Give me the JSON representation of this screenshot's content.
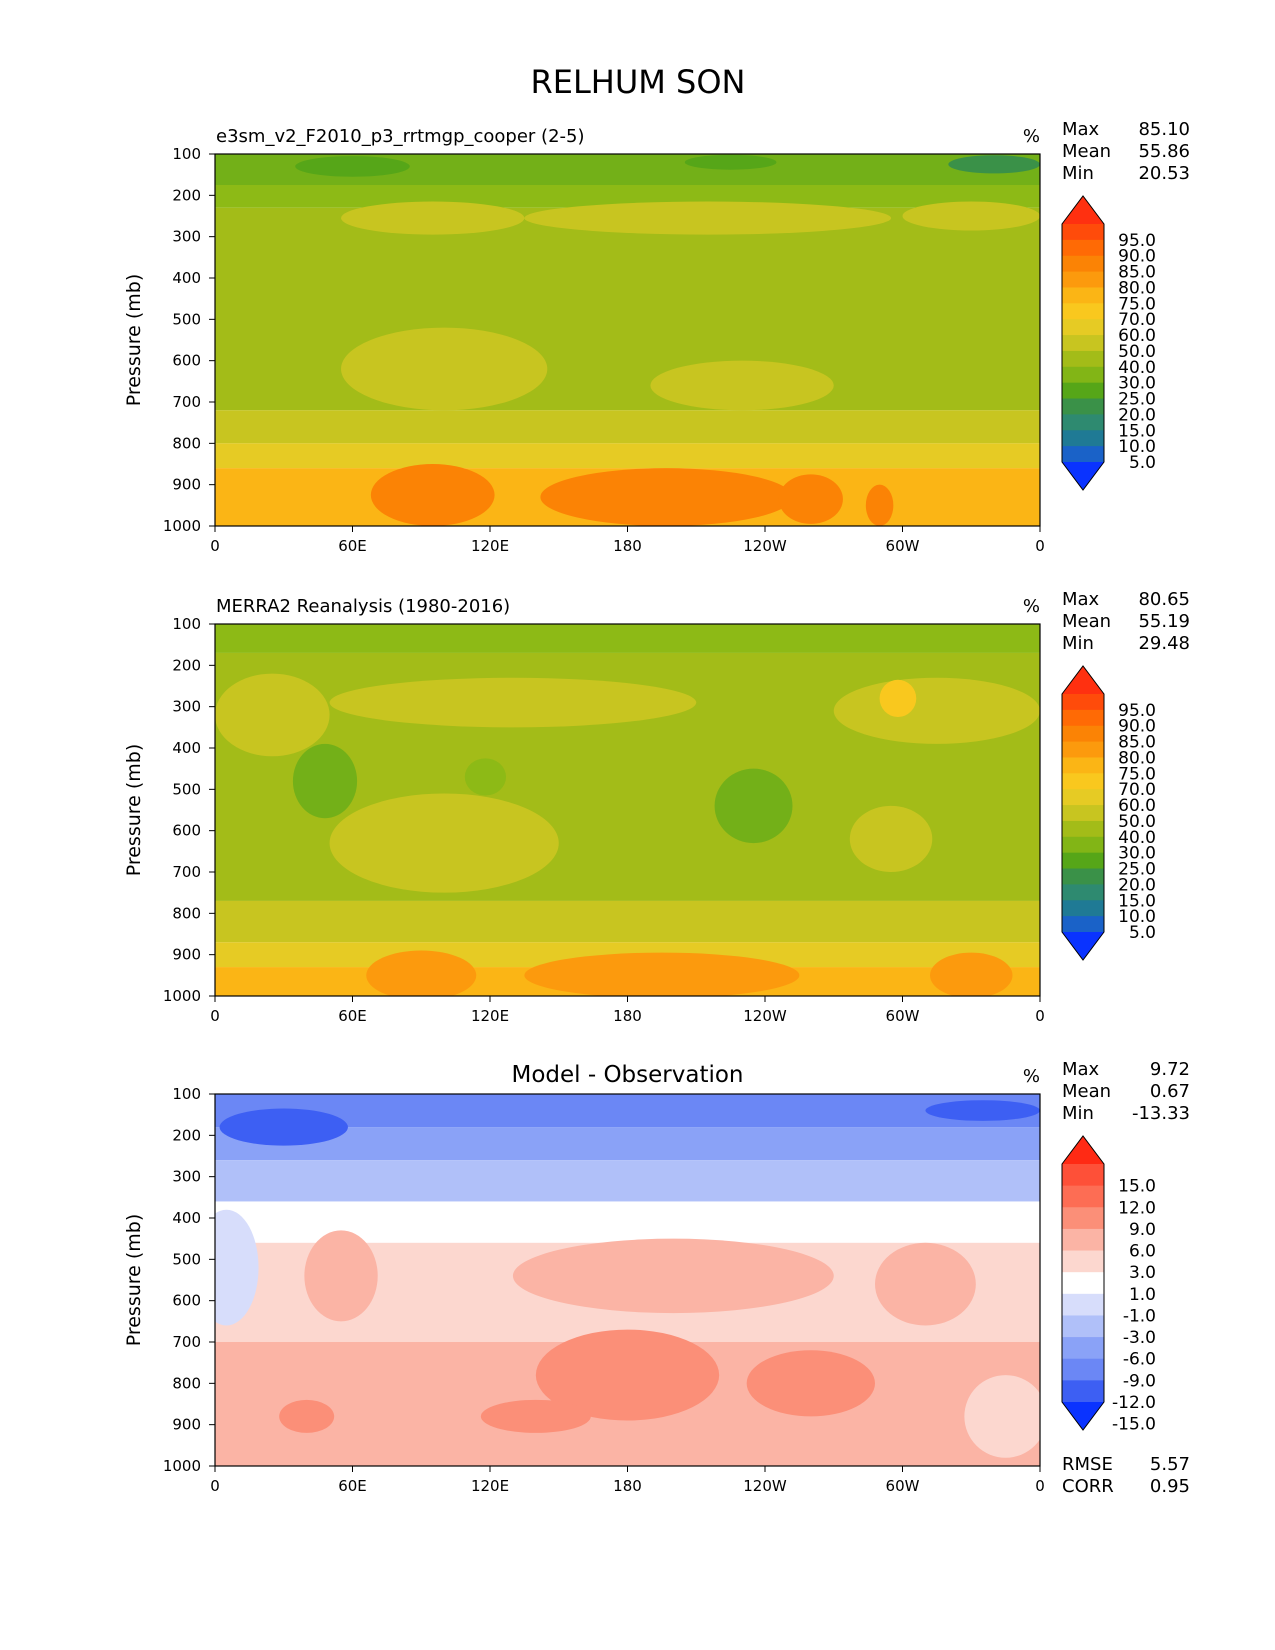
{
  "figure": {
    "title": "RELHUM SON"
  },
  "chart_data": [
    {
      "type": "heatmap",
      "id": "model",
      "title": "e3sm_v2_F2010_p3_rrtmgp_cooper (2-5)",
      "units": "%",
      "ylabel": "Pressure (mb)",
      "xlabel": "",
      "xticks": [
        "0",
        "60E",
        "120E",
        "180",
        "120W",
        "60W",
        "0"
      ],
      "xlim": [
        0,
        360
      ],
      "yticks": [
        "100",
        "200",
        "300",
        "400",
        "500",
        "600",
        "700",
        "800",
        "900",
        "1000"
      ],
      "ylim": [
        100,
        1000
      ],
      "stats": [
        {
          "label": "Max",
          "value": "85.10"
        },
        {
          "label": "Mean",
          "value": "55.86"
        },
        {
          "label": "Min",
          "value": "20.53"
        }
      ],
      "colorbar": {
        "levels": [
          "95.0",
          "90.0",
          "85.0",
          "80.0",
          "75.0",
          "70.0",
          "60.0",
          "50.0",
          "40.0",
          "30.0",
          "25.0",
          "20.0",
          "15.0",
          "10.0",
          "5.0"
        ],
        "colors": [
          "#ff3010",
          "#ff4b0a",
          "#ff6a05",
          "#fb8305",
          "#fc9a0d",
          "#fbb515",
          "#f9c81e",
          "#e6cb24",
          "#c8c520",
          "#a3bc18",
          "#82b516",
          "#56a618",
          "#3a9148",
          "#2e8a70",
          "#1f7a95",
          "#1a62c8",
          "#0a33ff"
        ]
      },
      "bands": [
        {
          "top": 100,
          "bottom": 175,
          "color": "#73b018",
          "label": "30-40"
        },
        {
          "top": 175,
          "bottom": 230,
          "color": "#8dba16",
          "label": "40-50"
        },
        {
          "top": 230,
          "bottom": 720,
          "color": "#a3bc18",
          "label": "50-60"
        },
        {
          "top": 720,
          "bottom": 800,
          "color": "#c8c520",
          "label": "60-70"
        },
        {
          "top": 800,
          "bottom": 860,
          "color": "#e6cb24",
          "label": "70-75"
        },
        {
          "top": 860,
          "bottom": 1000,
          "color": "#fbb515",
          "label": "75-80"
        }
      ],
      "blobs": [
        {
          "lon": 95,
          "p": 255,
          "dlon": 40,
          "dp": 40,
          "color": "#c8c520",
          "label": "60-70"
        },
        {
          "lon": 215,
          "p": 255,
          "dlon": 80,
          "dp": 40,
          "color": "#c8c520",
          "label": "60-70"
        },
        {
          "lon": 330,
          "p": 250,
          "dlon": 30,
          "dp": 35,
          "color": "#c8c520",
          "label": "60-70"
        },
        {
          "lon": 100,
          "p": 620,
          "dlon": 45,
          "dp": 100,
          "color": "#c8c520",
          "label": "60-70"
        },
        {
          "lon": 230,
          "p": 660,
          "dlon": 40,
          "dp": 60,
          "color": "#c8c520",
          "label": "60-70"
        },
        {
          "lon": 60,
          "p": 130,
          "dlon": 25,
          "dp": 25,
          "color": "#56a618",
          "label": "30-25"
        },
        {
          "lon": 225,
          "p": 120,
          "dlon": 20,
          "dp": 18,
          "color": "#56a618",
          "label": "30-25"
        },
        {
          "lon": 340,
          "p": 125,
          "dlon": 20,
          "dp": 22,
          "color": "#3a9148",
          "label": "25-20"
        },
        {
          "lon": 95,
          "p": 925,
          "dlon": 27,
          "dp": 75,
          "color": "#fb8305",
          "label": "80-85"
        },
        {
          "lon": 197,
          "p": 930,
          "dlon": 55,
          "dp": 70,
          "color": "#fb8305",
          "label": "80-85"
        },
        {
          "lon": 260,
          "p": 935,
          "dlon": 14,
          "dp": 60,
          "color": "#fb8305",
          "label": "80-85"
        },
        {
          "lon": 290,
          "p": 950,
          "dlon": 6,
          "dp": 50,
          "color": "#fb8305",
          "label": "80-85"
        }
      ]
    },
    {
      "type": "heatmap",
      "id": "obs",
      "title": "MERRA2 Reanalysis (1980-2016)",
      "units": "%",
      "ylabel": "Pressure (mb)",
      "xlabel": "",
      "xticks": [
        "0",
        "60E",
        "120E",
        "180",
        "120W",
        "60W",
        "0"
      ],
      "xlim": [
        0,
        360
      ],
      "yticks": [
        "100",
        "200",
        "300",
        "400",
        "500",
        "600",
        "700",
        "800",
        "900",
        "1000"
      ],
      "ylim": [
        100,
        1000
      ],
      "stats": [
        {
          "label": "Max",
          "value": "80.65"
        },
        {
          "label": "Mean",
          "value": "55.19"
        },
        {
          "label": "Min",
          "value": "29.48"
        }
      ],
      "colorbar": {
        "levels": [
          "95.0",
          "90.0",
          "85.0",
          "80.0",
          "75.0",
          "70.0",
          "60.0",
          "50.0",
          "40.0",
          "30.0",
          "25.0",
          "20.0",
          "15.0",
          "10.0",
          "5.0"
        ],
        "colors": [
          "#ff3010",
          "#ff4b0a",
          "#ff6a05",
          "#fb8305",
          "#fc9a0d",
          "#fbb515",
          "#f9c81e",
          "#e6cb24",
          "#c8c520",
          "#a3bc18",
          "#82b516",
          "#56a618",
          "#3a9148",
          "#2e8a70",
          "#1f7a95",
          "#1a62c8",
          "#0a33ff"
        ]
      },
      "bands": [
        {
          "top": 100,
          "bottom": 170,
          "color": "#8dba16",
          "label": "40-50"
        },
        {
          "top": 170,
          "bottom": 770,
          "color": "#a3bc18",
          "label": "50-60"
        },
        {
          "top": 770,
          "bottom": 870,
          "color": "#c8c520",
          "label": "60-70"
        },
        {
          "top": 870,
          "bottom": 930,
          "color": "#e6cb24",
          "label": "70-75"
        },
        {
          "top": 930,
          "bottom": 1000,
          "color": "#fbb515",
          "label": "75-80"
        }
      ],
      "blobs": [
        {
          "lon": 25,
          "p": 320,
          "dlon": 25,
          "dp": 100,
          "color": "#c8c520",
          "label": "60-70"
        },
        {
          "lon": 130,
          "p": 290,
          "dlon": 80,
          "dp": 60,
          "color": "#c8c520",
          "label": "60-70"
        },
        {
          "lon": 315,
          "p": 310,
          "dlon": 45,
          "dp": 80,
          "color": "#c8c520",
          "label": "60-70"
        },
        {
          "lon": 100,
          "p": 630,
          "dlon": 50,
          "dp": 120,
          "color": "#c8c520",
          "label": "60-70"
        },
        {
          "lon": 295,
          "p": 620,
          "dlon": 18,
          "dp": 80,
          "color": "#c8c520",
          "label": "60-70"
        },
        {
          "lon": 298,
          "p": 280,
          "dlon": 8,
          "dp": 45,
          "color": "#f9c81e",
          "label": "70-75"
        },
        {
          "lon": 48,
          "p": 480,
          "dlon": 14,
          "dp": 90,
          "color": "#73b018",
          "label": "40-30"
        },
        {
          "lon": 118,
          "p": 470,
          "dlon": 9,
          "dp": 45,
          "color": "#8dba16",
          "label": "40-50"
        },
        {
          "lon": 235,
          "p": 540,
          "dlon": 17,
          "dp": 90,
          "color": "#73b018",
          "label": "40-30"
        },
        {
          "lon": 90,
          "p": 950,
          "dlon": 24,
          "dp": 60,
          "color": "#fc9a0d",
          "label": "80-85"
        },
        {
          "lon": 195,
          "p": 950,
          "dlon": 60,
          "dp": 55,
          "color": "#fc9a0d",
          "label": "80-85"
        },
        {
          "lon": 330,
          "p": 950,
          "dlon": 18,
          "dp": 55,
          "color": "#fc9a0d",
          "label": "80-85"
        }
      ]
    },
    {
      "type": "heatmap",
      "id": "diff",
      "title": "Model - Observation",
      "units": "%",
      "ylabel": "Pressure (mb)",
      "xlabel": "",
      "xticks": [
        "0",
        "60E",
        "120E",
        "180",
        "120W",
        "60W",
        "0"
      ],
      "xlim": [
        0,
        360
      ],
      "yticks": [
        "100",
        "200",
        "300",
        "400",
        "500",
        "600",
        "700",
        "800",
        "900",
        "1000"
      ],
      "ylim": [
        100,
        1000
      ],
      "stats": [
        {
          "label": "Max",
          "value": "9.72"
        },
        {
          "label": "Mean",
          "value": "0.67"
        },
        {
          "label": "Min",
          "value": "-13.33"
        }
      ],
      "extra_stats": [
        {
          "label": "RMSE",
          "value": "5.57"
        },
        {
          "label": "CORR",
          "value": "0.95"
        }
      ],
      "colorbar": {
        "levels": [
          "15.0",
          "12.0",
          "9.0",
          "6.0",
          "3.0",
          "1.0",
          "-1.0",
          "-3.0",
          "-6.0",
          "-9.0",
          "-12.0",
          "-15.0"
        ],
        "colors": [
          "#ff2a14",
          "#fe5038",
          "#fd6d54",
          "#fb8f78",
          "#fbb4a5",
          "#fcd7cf",
          "#ffffff",
          "#d7ddfb",
          "#b0c0f9",
          "#8aa2f7",
          "#6b87f5",
          "#3d5ff3",
          "#0a33ff"
        ]
      },
      "bands": [
        {
          "top": 100,
          "bottom": 180,
          "color": "#6b87f5",
          "label": "-9 to -12"
        },
        {
          "top": 180,
          "bottom": 260,
          "color": "#8aa2f7",
          "label": "-6 to -9"
        },
        {
          "top": 260,
          "bottom": 360,
          "color": "#b0c0f9",
          "label": "-3 to -6"
        },
        {
          "top": 360,
          "bottom": 460,
          "color": "#ffffff",
          "label": "-1 to 1"
        },
        {
          "top": 460,
          "bottom": 700,
          "color": "#fcd7cf",
          "label": "1 to 3"
        },
        {
          "top": 700,
          "bottom": 1000,
          "color": "#fbb4a5",
          "label": "3 to 6"
        }
      ],
      "blobs": [
        {
          "lon": 5,
          "p": 520,
          "dlon": 14,
          "dp": 140,
          "color": "#d7ddfb",
          "label": "-1 to -3"
        },
        {
          "lon": 55,
          "p": 540,
          "dlon": 16,
          "dp": 110,
          "color": "#fbb4a5",
          "label": "3 to 6"
        },
        {
          "lon": 200,
          "p": 540,
          "dlon": 70,
          "dp": 90,
          "color": "#fbb4a5",
          "label": "3 to 6"
        },
        {
          "lon": 310,
          "p": 560,
          "dlon": 22,
          "dp": 100,
          "color": "#fbb4a5",
          "label": "3 to 6"
        },
        {
          "lon": 180,
          "p": 780,
          "dlon": 40,
          "dp": 110,
          "color": "#fb8f78",
          "label": "6 to 9"
        },
        {
          "lon": 260,
          "p": 800,
          "dlon": 28,
          "dp": 80,
          "color": "#fb8f78",
          "label": "6 to 9"
        },
        {
          "lon": 40,
          "p": 880,
          "dlon": 12,
          "dp": 40,
          "color": "#fb8f78",
          "label": "6 to 9"
        },
        {
          "lon": 140,
          "p": 880,
          "dlon": 24,
          "dp": 40,
          "color": "#fb8f78",
          "label": "6 to 9"
        },
        {
          "lon": 345,
          "p": 880,
          "dlon": 18,
          "dp": 100,
          "color": "#fcd7cf",
          "label": "1 to 3"
        },
        {
          "lon": 30,
          "p": 180,
          "dlon": 28,
          "dp": 45,
          "color": "#3d5ff3",
          "label": "-12 to -15"
        },
        {
          "lon": 335,
          "p": 140,
          "dlon": 25,
          "dp": 25,
          "color": "#3d5ff3",
          "label": "-12 to -15"
        }
      ]
    }
  ]
}
